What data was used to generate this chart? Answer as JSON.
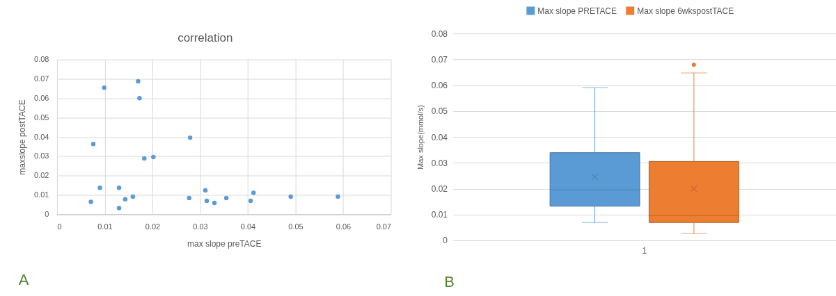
{
  "chart_data": [
    {
      "type": "scatter",
      "title": "correlation",
      "xlabel": "max slope preTACE",
      "ylabel": "maxslope postTACE",
      "x": [
        0.0099,
        0.017,
        0.0173,
        0.0076,
        0.0183,
        0.0202,
        0.0279,
        0.009,
        0.0071,
        0.013,
        0.013,
        0.0143,
        0.0159,
        0.0277,
        0.0311,
        0.0314,
        0.033,
        0.0355,
        0.0406,
        0.0412,
        0.049,
        0.0589
      ],
      "values": [
        0.0654,
        0.0687,
        0.06,
        0.0363,
        0.0289,
        0.0296,
        0.0396,
        0.0137,
        0.0064,
        0.0137,
        0.0032,
        0.0078,
        0.0091,
        0.0084,
        0.0124,
        0.007,
        0.0059,
        0.0084,
        0.007,
        0.0111,
        0.0091,
        0.0091
      ],
      "color": "#5b9bd5",
      "marker": "circle",
      "xlim": [
        0,
        0.07
      ],
      "xticks": [
        0,
        0.01,
        0.02,
        0.03,
        0.04,
        0.05,
        0.06,
        0.07
      ],
      "ylim": [
        0,
        0.08
      ],
      "yticks": [
        0,
        0.01,
        0.02,
        0.03,
        0.04,
        0.05,
        0.06,
        0.07,
        0.08
      ],
      "grid": true,
      "annotations": [
        "A"
      ]
    },
    {
      "type": "box",
      "categories": [
        "1"
      ],
      "ylabel": "Max slope(mmol/s)",
      "series": [
        {
          "name": "Max slope PRETACE",
          "color": "#5b9bd5",
          "boxes": [
            {
              "low": 0.0069,
              "q1": 0.0132,
              "median": 0.0195,
              "q3": 0.0339,
              "high": 0.0591,
              "mean": 0.0245
            }
          ]
        },
        {
          "name": "Max slope 6wkspostTACE",
          "color": "#ed7d31",
          "boxes": [
            {
              "low": 0.0026,
              "q1": 0.0069,
              "median": 0.0096,
              "q3": 0.0305,
              "high": 0.0647,
              "mean": 0.02,
              "outliers": [
                0.0679
              ]
            }
          ]
        }
      ],
      "ylim": [
        0,
        0.08
      ],
      "yticks": [
        0,
        0.01,
        0.02,
        0.03,
        0.04,
        0.05,
        0.06,
        0.07,
        0.08
      ],
      "grid": "y",
      "legend": "top",
      "annotations": [
        "B"
      ]
    }
  ]
}
